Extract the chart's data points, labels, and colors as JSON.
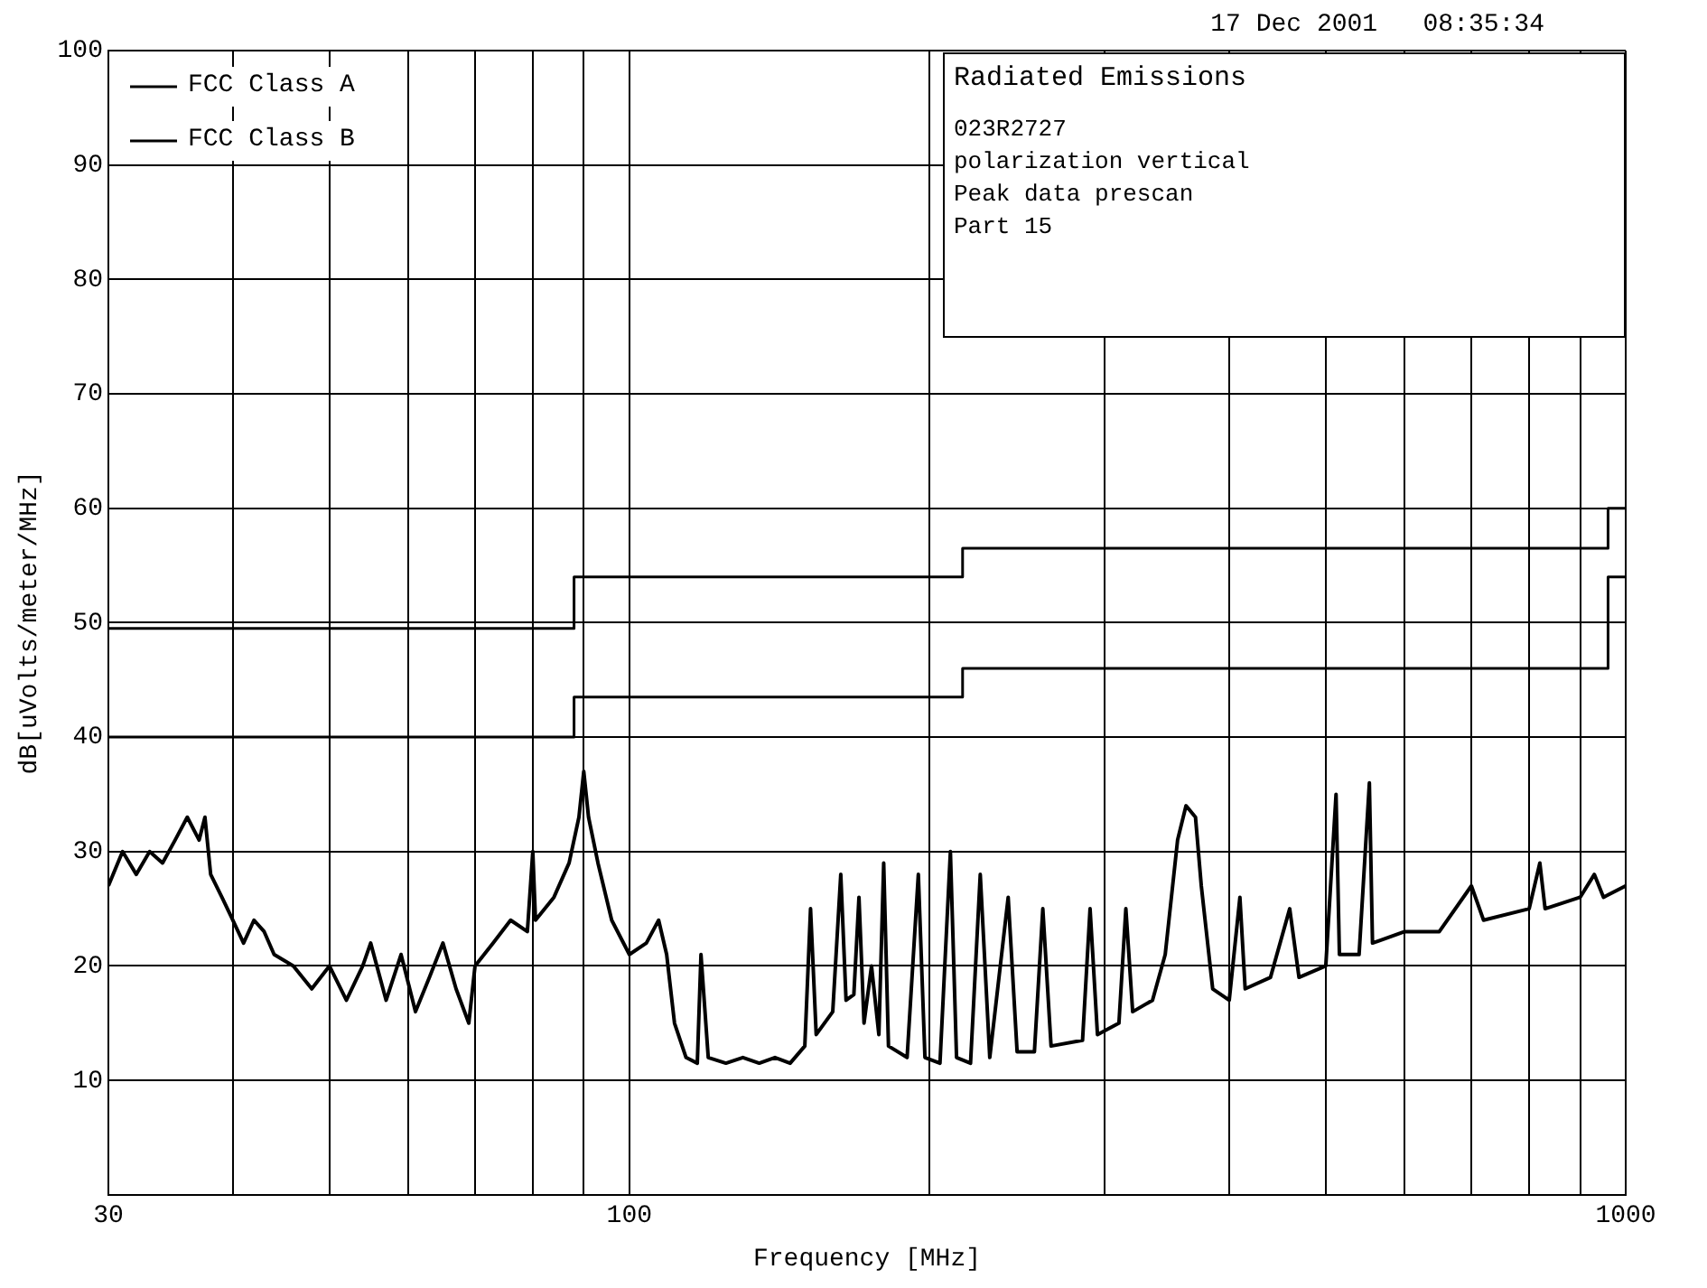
{
  "chart_data": {
    "type": "line",
    "title": "Radiated Emissions",
    "xlabel": "Frequency [MHz]",
    "ylabel": "dB[uVolts/meter/MHz]",
    "annotations": [
      "17 Dec 2001   08:35:34",
      "023R2727",
      "polarization vertical",
      "Peak data prescan",
      "Part 15"
    ],
    "log": "x",
    "xlim": [
      30,
      1000
    ],
    "ylim": [
      0,
      100
    ],
    "xticks": [
      30,
      {
        "value": 40,
        "label": null
      },
      {
        "value": 50,
        "label": null
      },
      {
        "value": 60,
        "label": null
      },
      {
        "value": 70,
        "label": null
      },
      {
        "value": 80,
        "label": null
      },
      {
        "value": 90,
        "label": null
      },
      100,
      {
        "value": 200,
        "label": null
      },
      {
        "value": 300,
        "label": null
      },
      {
        "value": 400,
        "label": null
      },
      {
        "value": 500,
        "label": null
      },
      {
        "value": 600,
        "label": null
      },
      {
        "value": 700,
        "label": null
      },
      {
        "value": 800,
        "label": null
      },
      {
        "value": 900,
        "label": null
      },
      1000
    ],
    "yticks": [
      10,
      20,
      30,
      40,
      50,
      60,
      70,
      80,
      90,
      100
    ],
    "grid": true,
    "legend": "top left",
    "marker": "none",
    "line_style": "solid",
    "series": [
      {
        "color": "#000000",
        "x": [
          30,
          31,
          32,
          33,
          34,
          35,
          36,
          37,
          37.5,
          38,
          39,
          40,
          41,
          42,
          43,
          44,
          46,
          48,
          50,
          52,
          54,
          55,
          57,
          59,
          61,
          63,
          65,
          67,
          69,
          70,
          73,
          76,
          79,
          80,
          80.5,
          84,
          87,
          89,
          90,
          91,
          93,
          96,
          100,
          104,
          107,
          109,
          111,
          114,
          117,
          118,
          120,
          125,
          130,
          135,
          140,
          145,
          150,
          152,
          154,
          160,
          163,
          165,
          168,
          170,
          172,
          175,
          178,
          180,
          182,
          190,
          195,
          198,
          205,
          210,
          213,
          220,
          225,
          230,
          240,
          245,
          255,
          260,
          265,
          285,
          290,
          295,
          310,
          315,
          320,
          335,
          345,
          355,
          362,
          370,
          375,
          385,
          400,
          410,
          415,
          440,
          460,
          470,
          500,
          512,
          516,
          540,
          553,
          557,
          600,
          650,
          700,
          720,
          800,
          820,
          830,
          900,
          930,
          950,
          1000
        ],
        "values": [
          27,
          30,
          28,
          30,
          29,
          31,
          33,
          31,
          33,
          28,
          26,
          24,
          22,
          24,
          23,
          21,
          20,
          18,
          20,
          17,
          20,
          22,
          17,
          21,
          16,
          19,
          22,
          18,
          15,
          20,
          22,
          24,
          23,
          30,
          24,
          26,
          29,
          33,
          37,
          33,
          29,
          24,
          21,
          22,
          24,
          21,
          15,
          12,
          11.5,
          21,
          12,
          11.5,
          12,
          11.5,
          12,
          11.5,
          13,
          25,
          14,
          16,
          28,
          17,
          17.5,
          26,
          15,
          20,
          14,
          29,
          13,
          12,
          28,
          12,
          11.5,
          30,
          12,
          11.5,
          28,
          12,
          26,
          12.5,
          12.5,
          25,
          13,
          13.5,
          25,
          14,
          15,
          25,
          16,
          17,
          21,
          31,
          34,
          33,
          27,
          18,
          17,
          26,
          18,
          19,
          25,
          19,
          20,
          35,
          21,
          21,
          36,
          22,
          23,
          23,
          27,
          24,
          25,
          29,
          25,
          26,
          28,
          26,
          27
        ]
      },
      {
        "type": "step",
        "name": "FCC Class A",
        "color": "#000000",
        "x": [
          30,
          88,
          216,
          960,
          1000
        ],
        "values": [
          49.5,
          54,
          56.5,
          60,
          60
        ]
      },
      {
        "type": "step",
        "name": "FCC Class B",
        "color": "#000000",
        "x": [
          30,
          88,
          216,
          960,
          1000
        ],
        "values": [
          40,
          43.5,
          46,
          54,
          54
        ]
      }
    ]
  }
}
